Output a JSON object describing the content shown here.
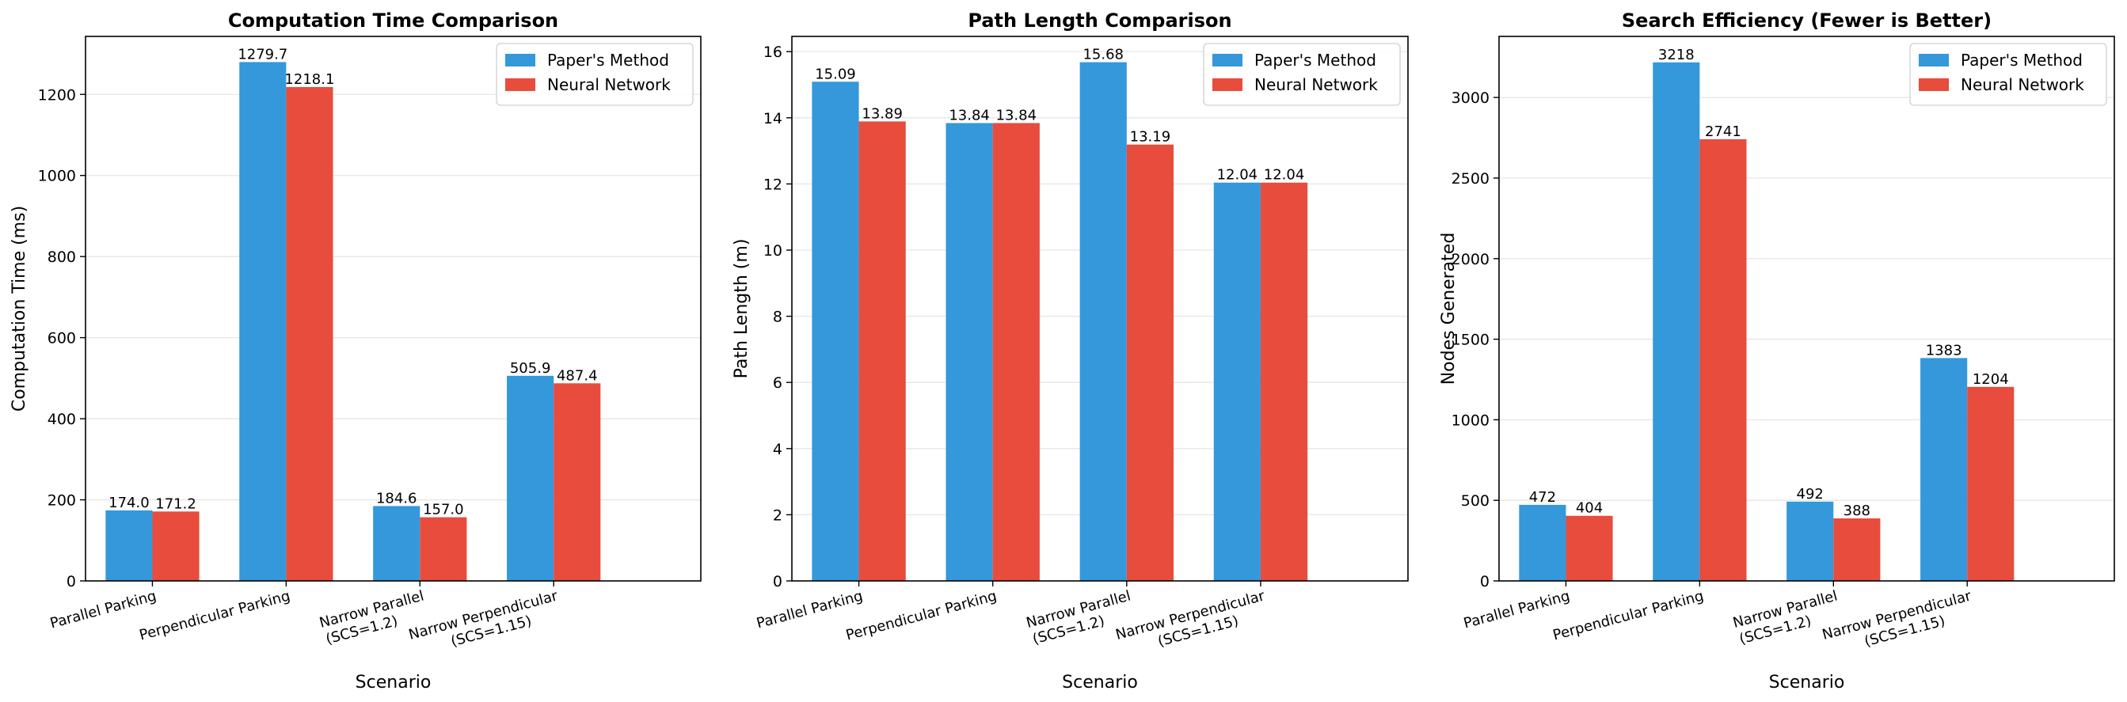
{
  "colors": {
    "paper": "#3498db",
    "nn": "#e74c3c"
  },
  "chart_data": [
    {
      "type": "bar",
      "title": "Computation Time Comparison",
      "xlabel": "Scenario",
      "ylabel": "Computation Time (ms)",
      "categories": [
        [
          "Parallel Parking"
        ],
        [
          "Perpendicular Parking"
        ],
        [
          "Narrow Parallel",
          "(SCS=1.2)"
        ],
        [
          "Narrow Perpendicular",
          "(SCS=1.15)"
        ]
      ],
      "ylim": [
        0,
        1343
      ],
      "yticks": [
        0,
        200,
        400,
        600,
        800,
        1000,
        1200
      ],
      "series": [
        {
          "name": "Paper's Method",
          "values": [
            174.0,
            1279.7,
            184.6,
            505.9
          ],
          "labels": [
            "174.0",
            "1279.7",
            "184.6",
            "505.9"
          ]
        },
        {
          "name": "Neural Network",
          "values": [
            171.2,
            1218.1,
            157.0,
            487.4
          ],
          "labels": [
            "171.2",
            "1218.1",
            "157.0",
            "487.4"
          ]
        }
      ],
      "legend": "top-right",
      "grid": true
    },
    {
      "type": "bar",
      "title": "Path Length Comparison",
      "xlabel": "Scenario",
      "ylabel": "Path Length (m)",
      "categories": [
        [
          "Parallel Parking"
        ],
        [
          "Perpendicular Parking"
        ],
        [
          "Narrow Parallel",
          "(SCS=1.2)"
        ],
        [
          "Narrow Perpendicular",
          "(SCS=1.15)"
        ]
      ],
      "ylim": [
        0,
        16.46
      ],
      "yticks": [
        0,
        2,
        4,
        6,
        8,
        10,
        12,
        14,
        16
      ],
      "series": [
        {
          "name": "Paper's Method",
          "values": [
            15.09,
            13.84,
            15.68,
            12.04
          ],
          "labels": [
            "15.09",
            "13.84",
            "15.68",
            "12.04"
          ]
        },
        {
          "name": "Neural Network",
          "values": [
            13.89,
            13.84,
            13.19,
            12.04
          ],
          "labels": [
            "13.89",
            "13.84",
            "13.19",
            "12.04"
          ]
        }
      ],
      "legend": "top-right",
      "grid": true
    },
    {
      "type": "bar",
      "title": "Search Efficiency (Fewer is Better)",
      "xlabel": "Scenario",
      "ylabel": "Nodes Generated",
      "categories": [
        [
          "Parallel Parking"
        ],
        [
          "Perpendicular Parking"
        ],
        [
          "Narrow Parallel",
          "(SCS=1.2)"
        ],
        [
          "Narrow Perpendicular",
          "(SCS=1.15)"
        ]
      ],
      "ylim": [
        0,
        3379
      ],
      "yticks": [
        0,
        500,
        1000,
        1500,
        2000,
        2500,
        3000
      ],
      "series": [
        {
          "name": "Paper's Method",
          "values": [
            472,
            3218,
            492,
            1383
          ],
          "labels": [
            "472",
            "3218",
            "492",
            "1383"
          ]
        },
        {
          "name": "Neural Network",
          "values": [
            404,
            2741,
            388,
            1204
          ],
          "labels": [
            "404",
            "2741",
            "388",
            "1204"
          ]
        }
      ],
      "legend": "top-right",
      "grid": true
    }
  ]
}
